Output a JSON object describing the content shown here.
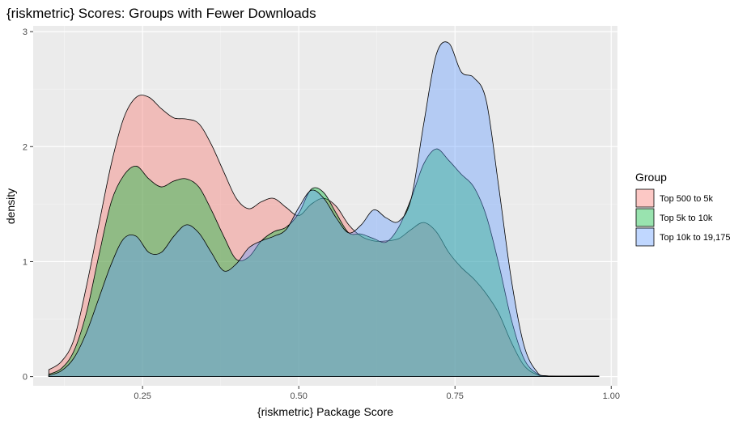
{
  "chart_data": {
    "type": "area",
    "title": "{riskmetric} Scores: Groups with Fewer Downloads",
    "xlabel": "{riskmetric} Package Score",
    "ylabel": "density",
    "xlim": [
      0.075,
      1.01
    ],
    "ylim": [
      -0.08,
      3.05
    ],
    "x_ticks": [
      0.25,
      0.5,
      0.75,
      1.0
    ],
    "x_tick_labels": [
      "0.25",
      "0.50",
      "0.75",
      "1.00"
    ],
    "y_ticks": [
      0,
      1,
      2,
      3
    ],
    "y_tick_labels": [
      "0",
      "1",
      "2",
      "3"
    ],
    "grid": true,
    "legend": {
      "title": "Group",
      "placement": "right"
    },
    "series": [
      {
        "name": "Top 500 to 5k",
        "color": "#F8766D",
        "points": [
          [
            0.1,
            0.06
          ],
          [
            0.12,
            0.13
          ],
          [
            0.14,
            0.32
          ],
          [
            0.16,
            0.78
          ],
          [
            0.18,
            1.32
          ],
          [
            0.2,
            1.85
          ],
          [
            0.22,
            2.25
          ],
          [
            0.24,
            2.43
          ],
          [
            0.26,
            2.43
          ],
          [
            0.28,
            2.33
          ],
          [
            0.3,
            2.25
          ],
          [
            0.32,
            2.24
          ],
          [
            0.34,
            2.2
          ],
          [
            0.36,
            2.02
          ],
          [
            0.38,
            1.78
          ],
          [
            0.4,
            1.55
          ],
          [
            0.42,
            1.46
          ],
          [
            0.44,
            1.52
          ],
          [
            0.46,
            1.55
          ],
          [
            0.48,
            1.47
          ],
          [
            0.5,
            1.4
          ],
          [
            0.52,
            1.5
          ],
          [
            0.54,
            1.55
          ],
          [
            0.56,
            1.48
          ],
          [
            0.58,
            1.32
          ],
          [
            0.6,
            1.22
          ],
          [
            0.62,
            1.18
          ],
          [
            0.64,
            1.18
          ],
          [
            0.66,
            1.2
          ],
          [
            0.68,
            1.28
          ],
          [
            0.7,
            1.34
          ],
          [
            0.72,
            1.26
          ],
          [
            0.74,
            1.08
          ],
          [
            0.76,
            0.95
          ],
          [
            0.78,
            0.85
          ],
          [
            0.8,
            0.72
          ],
          [
            0.82,
            0.55
          ],
          [
            0.84,
            0.3
          ],
          [
            0.86,
            0.1
          ],
          [
            0.88,
            0.02
          ],
          [
            0.9,
            0.005
          ],
          [
            0.98,
            0.005
          ]
        ]
      },
      {
        "name": "Top 5k to 10k",
        "color": "#00BA38",
        "points": [
          [
            0.1,
            0.02
          ],
          [
            0.12,
            0.07
          ],
          [
            0.14,
            0.22
          ],
          [
            0.16,
            0.55
          ],
          [
            0.18,
            1.05
          ],
          [
            0.2,
            1.52
          ],
          [
            0.22,
            1.75
          ],
          [
            0.24,
            1.83
          ],
          [
            0.26,
            1.72
          ],
          [
            0.28,
            1.65
          ],
          [
            0.3,
            1.7
          ],
          [
            0.32,
            1.72
          ],
          [
            0.34,
            1.65
          ],
          [
            0.36,
            1.45
          ],
          [
            0.38,
            1.22
          ],
          [
            0.4,
            1.02
          ],
          [
            0.42,
            1.04
          ],
          [
            0.44,
            1.18
          ],
          [
            0.46,
            1.26
          ],
          [
            0.48,
            1.3
          ],
          [
            0.5,
            1.42
          ],
          [
            0.52,
            1.63
          ],
          [
            0.54,
            1.6
          ],
          [
            0.56,
            1.42
          ],
          [
            0.58,
            1.25
          ],
          [
            0.6,
            1.24
          ],
          [
            0.62,
            1.2
          ],
          [
            0.64,
            1.17
          ],
          [
            0.66,
            1.3
          ],
          [
            0.68,
            1.55
          ],
          [
            0.7,
            1.85
          ],
          [
            0.72,
            1.98
          ],
          [
            0.74,
            1.88
          ],
          [
            0.76,
            1.76
          ],
          [
            0.78,
            1.65
          ],
          [
            0.8,
            1.4
          ],
          [
            0.82,
            0.98
          ],
          [
            0.84,
            0.5
          ],
          [
            0.86,
            0.16
          ],
          [
            0.88,
            0.03
          ],
          [
            0.9,
            0.005
          ],
          [
            0.98,
            0.005
          ]
        ]
      },
      {
        "name": "Top 10k to 19,175",
        "color": "#619CFF",
        "points": [
          [
            0.1,
            0.01
          ],
          [
            0.12,
            0.05
          ],
          [
            0.14,
            0.16
          ],
          [
            0.16,
            0.38
          ],
          [
            0.18,
            0.68
          ],
          [
            0.2,
            0.98
          ],
          [
            0.22,
            1.2
          ],
          [
            0.24,
            1.22
          ],
          [
            0.26,
            1.08
          ],
          [
            0.28,
            1.08
          ],
          [
            0.3,
            1.22
          ],
          [
            0.32,
            1.32
          ],
          [
            0.34,
            1.25
          ],
          [
            0.36,
            1.08
          ],
          [
            0.38,
            0.92
          ],
          [
            0.4,
            0.98
          ],
          [
            0.42,
            1.12
          ],
          [
            0.44,
            1.18
          ],
          [
            0.46,
            1.22
          ],
          [
            0.48,
            1.28
          ],
          [
            0.5,
            1.47
          ],
          [
            0.52,
            1.62
          ],
          [
            0.54,
            1.55
          ],
          [
            0.56,
            1.38
          ],
          [
            0.58,
            1.25
          ],
          [
            0.6,
            1.32
          ],
          [
            0.62,
            1.45
          ],
          [
            0.64,
            1.38
          ],
          [
            0.66,
            1.35
          ],
          [
            0.68,
            1.55
          ],
          [
            0.7,
            2.2
          ],
          [
            0.72,
            2.8
          ],
          [
            0.74,
            2.9
          ],
          [
            0.76,
            2.65
          ],
          [
            0.78,
            2.6
          ],
          [
            0.8,
            2.4
          ],
          [
            0.82,
            1.65
          ],
          [
            0.84,
            0.85
          ],
          [
            0.86,
            0.28
          ],
          [
            0.88,
            0.05
          ],
          [
            0.9,
            0.005
          ],
          [
            0.98,
            0.005
          ]
        ]
      }
    ]
  }
}
